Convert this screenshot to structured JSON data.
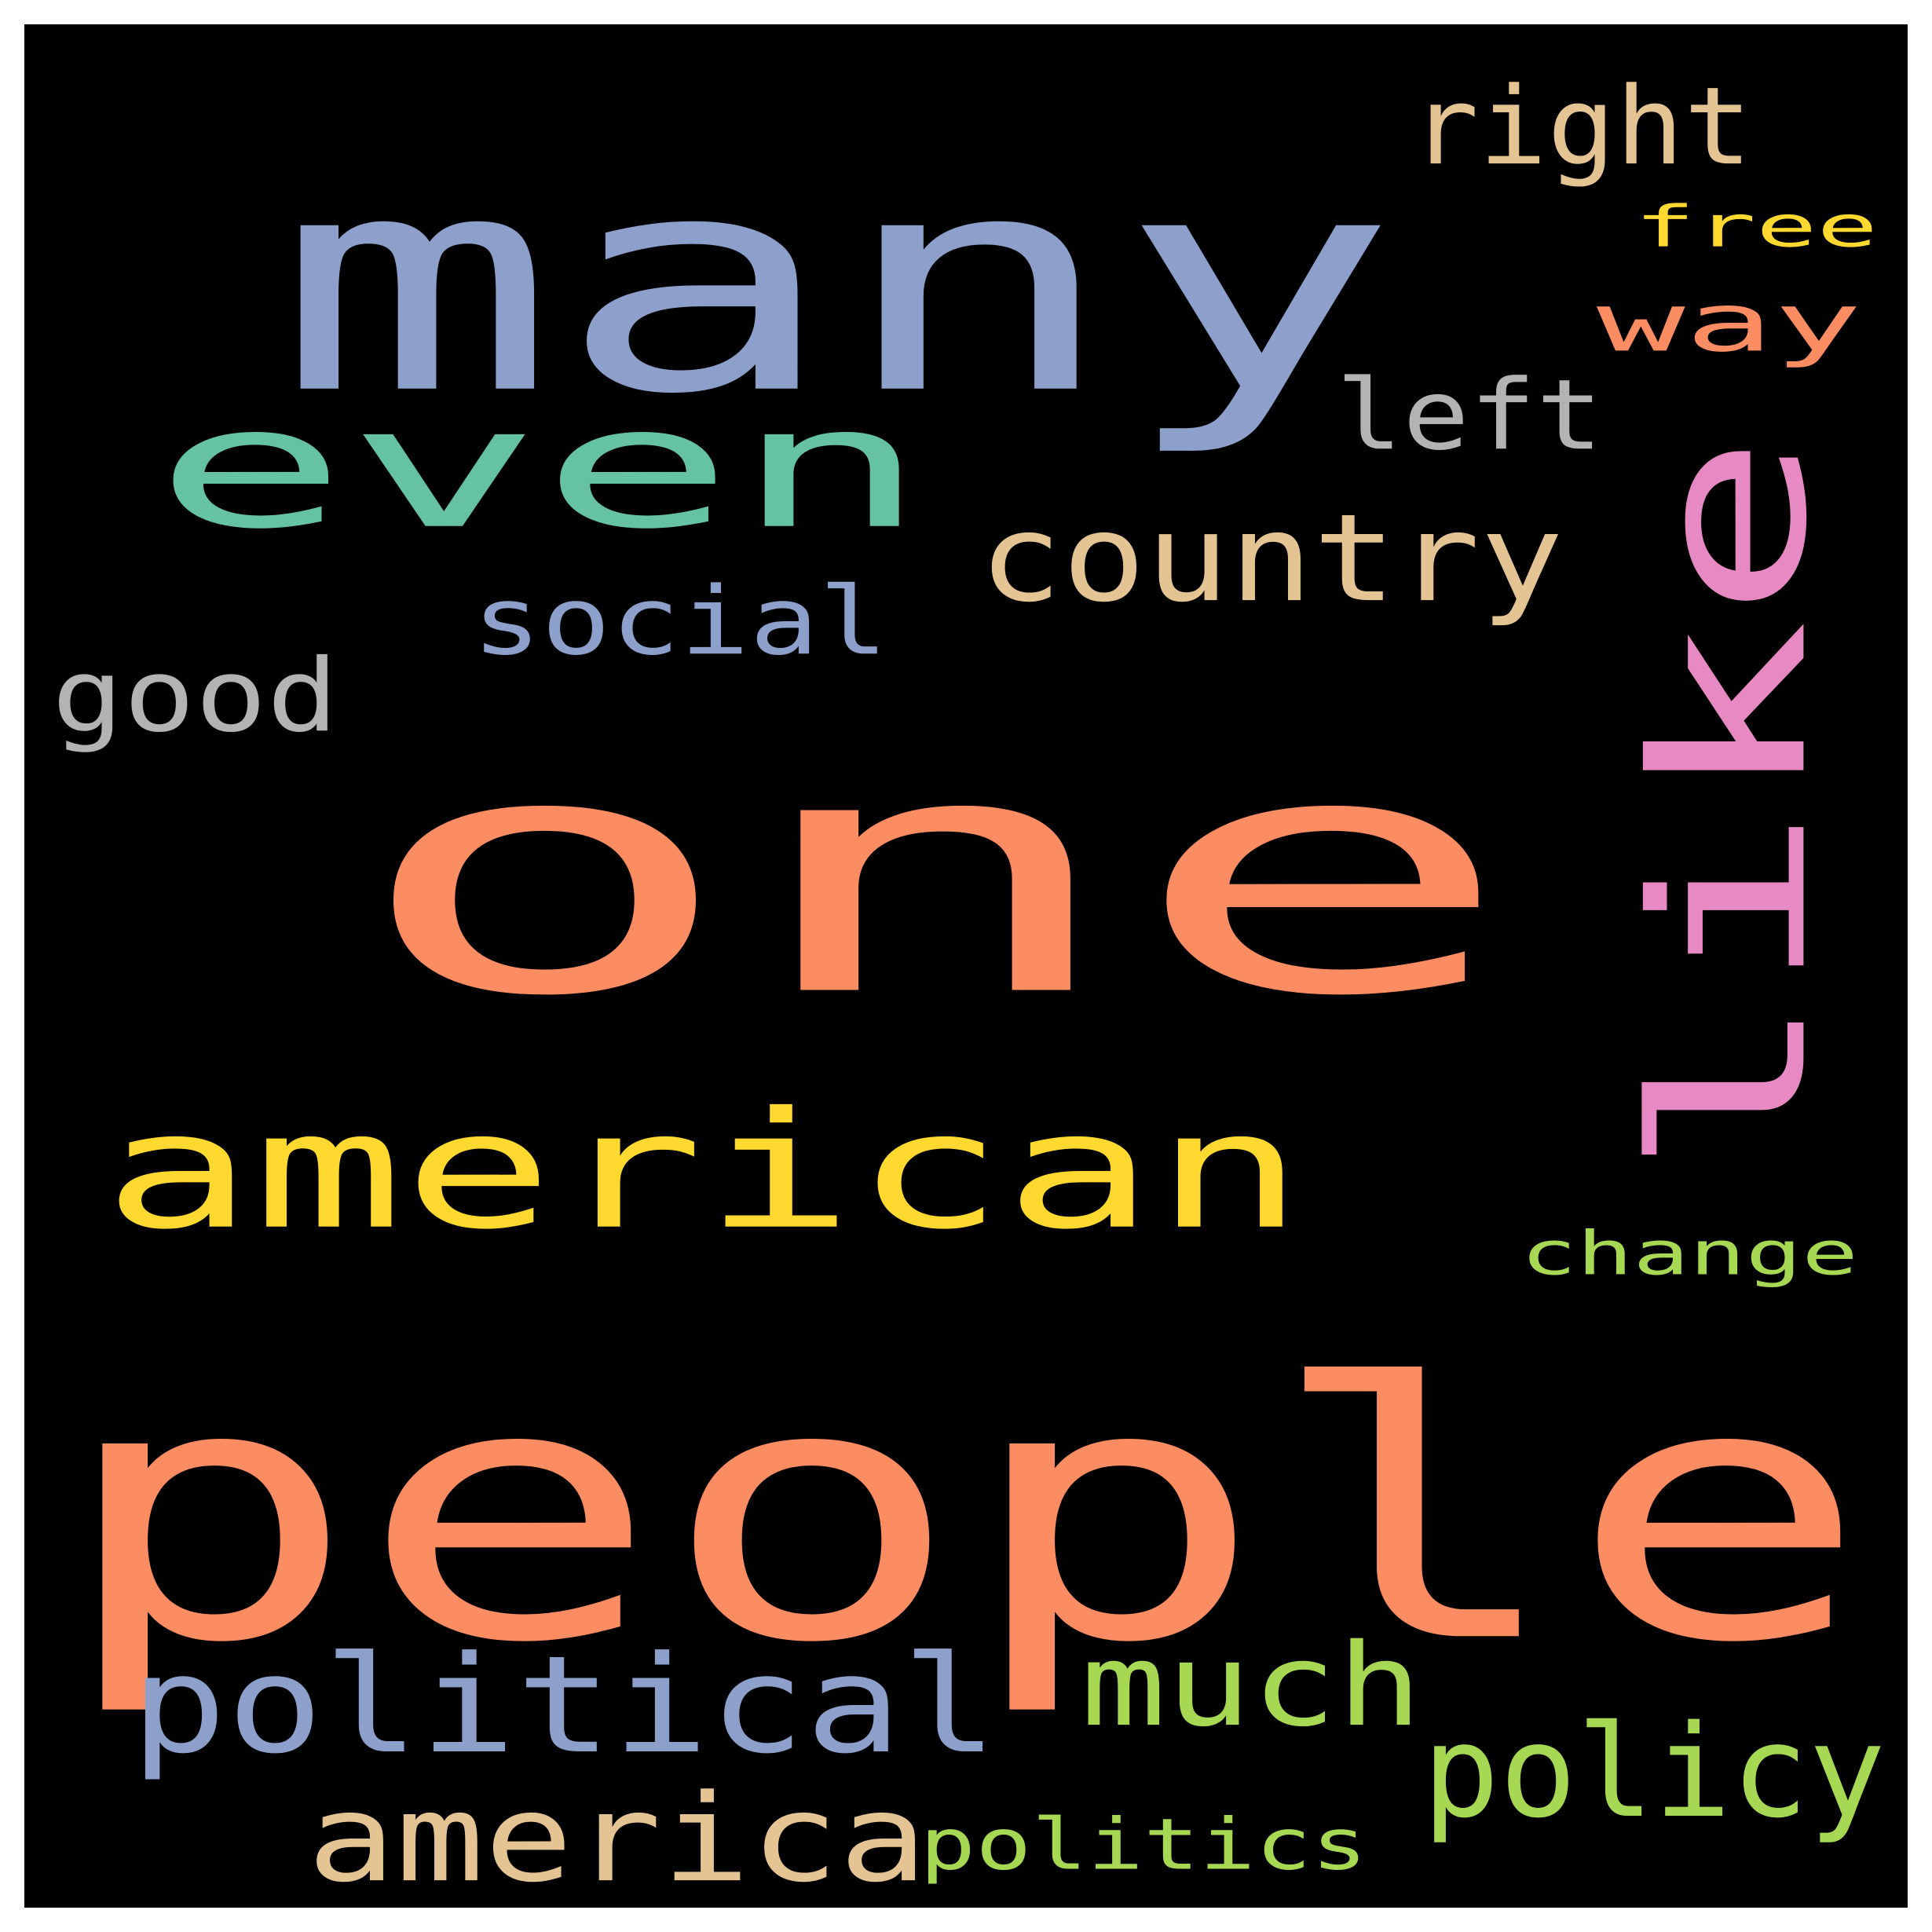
{
  "words": [
    {
      "text": "one",
      "color": "#fc8d62"
    },
    {
      "text": "people",
      "color": "#fc8d62"
    },
    {
      "text": "many",
      "color": "#8da0cb"
    },
    {
      "text": "like",
      "color": "#e78ac3"
    },
    {
      "text": "even",
      "color": "#66c2a5"
    },
    {
      "text": "american",
      "color": "#ffd92f"
    },
    {
      "text": "political",
      "color": "#8da0cb"
    },
    {
      "text": "country",
      "color": "#e5c494"
    },
    {
      "text": "much",
      "color": "#a6d854"
    },
    {
      "text": "policy",
      "color": "#a6d854"
    },
    {
      "text": "america",
      "color": "#e5c494"
    },
    {
      "text": "right",
      "color": "#e5c494"
    },
    {
      "text": "social",
      "color": "#8da0cb"
    },
    {
      "text": "good",
      "color": "#b3b3b3"
    },
    {
      "text": "left",
      "color": "#b3b3b3"
    },
    {
      "text": "way",
      "color": "#fc8d62"
    },
    {
      "text": "change",
      "color": "#a6d854"
    },
    {
      "text": "politics",
      "color": "#a6d854"
    },
    {
      "text": "free",
      "color": "#ffd92f"
    }
  ]
}
